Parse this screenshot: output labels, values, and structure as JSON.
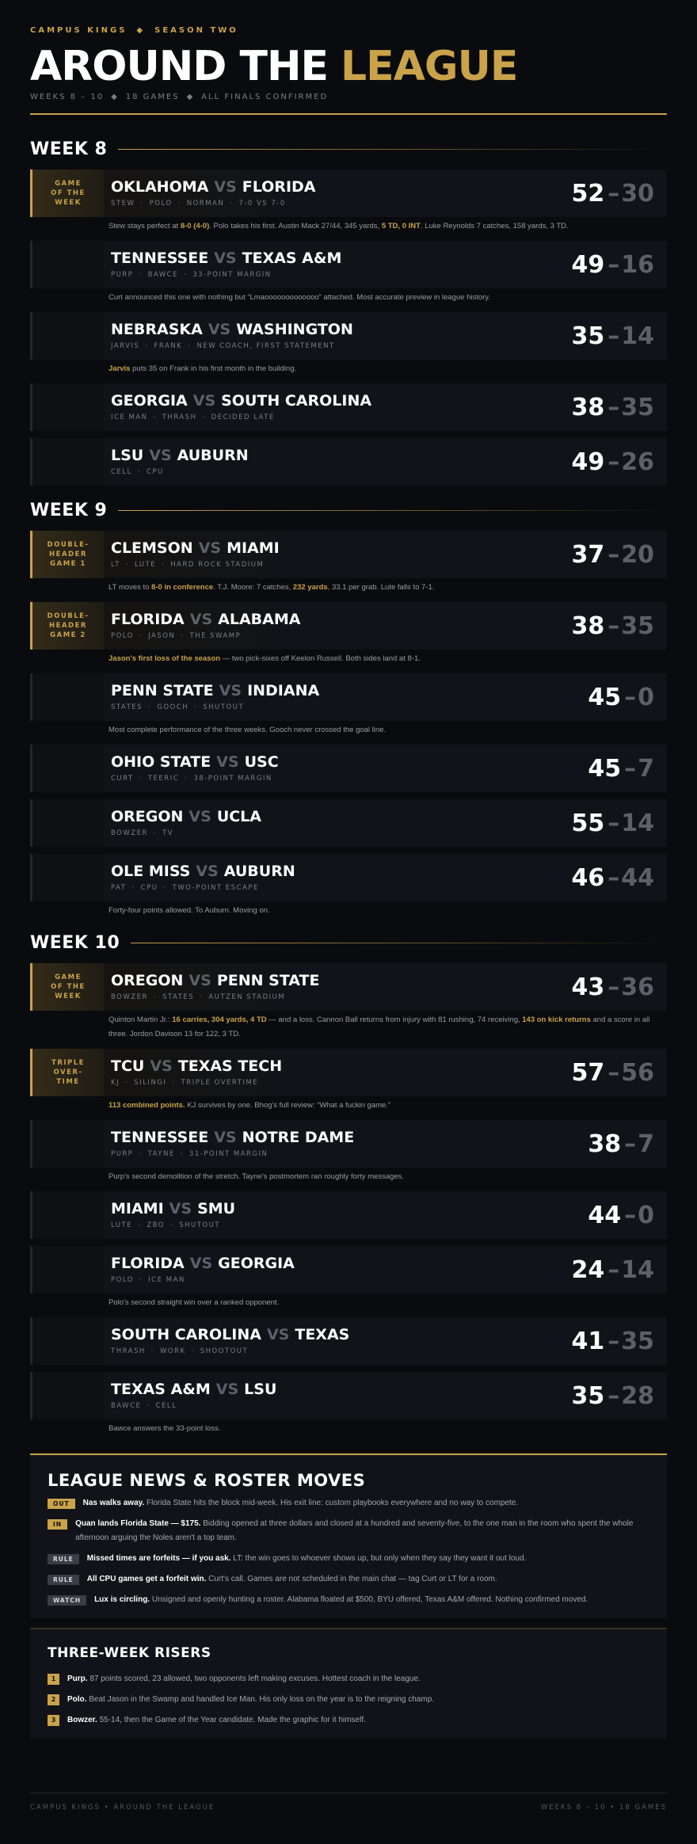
{
  "separators": {
    "diamond": "◆",
    "dot": "·",
    "vs": "VS",
    "dash": "–"
  },
  "header": {
    "kicker": [
      "CAMPUS KINGS",
      "SEASON TWO"
    ],
    "title_main": "AROUND THE",
    "title_accent": "LEAGUE",
    "meta": [
      "WEEKS 8 – 10",
      "18 GAMES",
      "ALL FINALS CONFIRMED"
    ]
  },
  "weeks": [
    {
      "label": "WEEK 8",
      "games": [
        {
          "tag": [
            "GAME",
            "OF THE",
            "WEEK"
          ],
          "home": "OKLAHOMA",
          "away": "FLORIDA",
          "meta": [
            "STEW",
            "POLO",
            "NORMAN",
            "7-0 VS 7-0"
          ],
          "score": [
            52,
            30
          ],
          "note": [
            {
              "text": "Stew stays perfect at "
            },
            {
              "text": "8-0 (4-0)",
              "b": true
            },
            {
              "text": ". Polo takes his first. Austin Mack 27/44, 345 yards, "
            },
            {
              "text": "5 TD, 0 INT",
              "b": true
            },
            {
              "text": ". Luke Reynolds 7 catches, 158 yards, 3 TD."
            }
          ]
        },
        {
          "home": "TENNESSEE",
          "away": "TEXAS A&M",
          "meta": [
            "PURP",
            "BAWCE",
            "33-POINT MARGIN"
          ],
          "score": [
            49,
            16
          ],
          "note": [
            {
              "text": "Curt announced this one with nothing but “Lmaooooooooooooo” attached. Most accurate preview in league history."
            }
          ]
        },
        {
          "home": "NEBRASKA",
          "away": "WASHINGTON",
          "meta": [
            "JARVIS",
            "FRANK",
            "NEW COACH, FIRST STATEMENT"
          ],
          "score": [
            35,
            14
          ],
          "note": [
            {
              "text": "Jarvis",
              "b": true
            },
            {
              "text": " puts 35 on Frank in his first month in the building."
            }
          ]
        },
        {
          "home": "GEORGIA",
          "away": "SOUTH CAROLINA",
          "meta": [
            "ICE MAN",
            "THRASH",
            "DECIDED LATE"
          ],
          "score": [
            38,
            35
          ]
        },
        {
          "home": "LSU",
          "away": "AUBURN",
          "meta": [
            "CELL",
            "CPU"
          ],
          "score": [
            49,
            26
          ]
        }
      ]
    },
    {
      "label": "WEEK 9",
      "games": [
        {
          "tag": [
            "DOUBLE-",
            "HEADER",
            "GAME 1"
          ],
          "home": "CLEMSON",
          "away": "MIAMI",
          "meta": [
            "LT",
            "LUTE",
            "HARD ROCK STADIUM"
          ],
          "score": [
            37,
            20
          ],
          "note": [
            {
              "text": "LT moves to "
            },
            {
              "text": "8-0 in conference",
              "b": true
            },
            {
              "text": ". T.J. Moore: 7 catches, "
            },
            {
              "text": "232 yards",
              "b": true
            },
            {
              "text": ", 33.1 per grab. Lute falls to 7-1."
            }
          ]
        },
        {
          "tag": [
            "DOUBLE-",
            "HEADER",
            "GAME 2"
          ],
          "home": "FLORIDA",
          "away": "ALABAMA",
          "meta": [
            "POLO",
            "JASON",
            "THE SWAMP"
          ],
          "score": [
            38,
            35
          ],
          "note": [
            {
              "text": "Jason's first loss of the season",
              "b": true
            },
            {
              "text": " — two pick-sixes off Keelon Russell. Both sides land at 8-1."
            }
          ]
        },
        {
          "home": "PENN STATE",
          "away": "INDIANA",
          "meta": [
            "STATES",
            "GOOCH",
            "SHUTOUT"
          ],
          "score": [
            45,
            0
          ],
          "note": [
            {
              "text": "Most complete performance of the three weeks. Gooch never crossed the goal line."
            }
          ]
        },
        {
          "home": "OHIO STATE",
          "away": "USC",
          "meta": [
            "CURT",
            "TEERIC",
            "38-POINT MARGIN"
          ],
          "score": [
            45,
            7
          ]
        },
        {
          "home": "OREGON",
          "away": "UCLA",
          "meta": [
            "BOWZER",
            "TV"
          ],
          "score": [
            55,
            14
          ]
        },
        {
          "home": "OLE MISS",
          "away": "AUBURN",
          "meta": [
            "PAT",
            "CPU",
            "TWO-POINT ESCAPE"
          ],
          "score": [
            46,
            44
          ],
          "note": [
            {
              "text": "Forty-four points allowed. To Auburn. Moving on."
            }
          ]
        }
      ]
    },
    {
      "label": "WEEK 10",
      "games": [
        {
          "tag": [
            "GAME",
            "OF THE",
            "WEEK"
          ],
          "home": "OREGON",
          "away": "PENN STATE",
          "meta": [
            "BOWZER",
            "STATES",
            "AUTZEN STADIUM"
          ],
          "score": [
            43,
            36
          ],
          "note": [
            {
              "text": "Quinton Martin Jr.: "
            },
            {
              "text": "16 carries, 304 yards, 4 TD",
              "b": true
            },
            {
              "text": " — and a loss. Cannon Ball returns from injury with 81 rushing, 74 receiving, "
            },
            {
              "text": "143 on kick returns",
              "b": true
            },
            {
              "text": " and a score in all three. Jordon Davison 13 for 122, 3 TD."
            }
          ]
        },
        {
          "tag": [
            "TRIPLE",
            "OVER-",
            "TIME"
          ],
          "home": "TCU",
          "away": "TEXAS TECH",
          "meta": [
            "KJ",
            "SILINGI",
            "TRIPLE OVERTIME"
          ],
          "score": [
            57,
            56
          ],
          "note": [
            {
              "text": "113 combined points.",
              "b": true
            },
            {
              "text": " KJ survives by one. Bhog's full review: “What a fuckin game.”"
            }
          ]
        },
        {
          "home": "TENNESSEE",
          "away": "NOTRE DAME",
          "meta": [
            "PURP",
            "TAYNE",
            "31-POINT MARGIN"
          ],
          "score": [
            38,
            7
          ],
          "note": [
            {
              "text": "Purp's second demolition of the stretch. Tayne's postmortem ran roughly forty messages."
            }
          ]
        },
        {
          "home": "MIAMI",
          "away": "SMU",
          "meta": [
            "LUTE",
            "ZBO",
            "SHUTOUT"
          ],
          "score": [
            44,
            0
          ]
        },
        {
          "home": "FLORIDA",
          "away": "GEORGIA",
          "meta": [
            "POLO",
            "ICE MAN"
          ],
          "score": [
            24,
            14
          ],
          "note": [
            {
              "text": "Polo's second straight win over a ranked opponent."
            }
          ]
        },
        {
          "home": "SOUTH CAROLINA",
          "away": "TEXAS",
          "meta": [
            "THRASH",
            "WORK",
            "SHOOTOUT"
          ],
          "score": [
            41,
            35
          ]
        },
        {
          "home": "TEXAS A&M",
          "away": "LSU",
          "meta": [
            "BAWCE",
            "CELL"
          ],
          "score": [
            35,
            28
          ],
          "note": [
            {
              "text": "Bawce answers the 33-point loss."
            }
          ]
        }
      ]
    }
  ],
  "news": {
    "title": "LEAGUE NEWS & ROSTER MOVES",
    "items": [
      {
        "tag": "OUT",
        "tag_bg": "#c9a24a",
        "tag_fg": "#111111",
        "lead": "Nas walks away.",
        "text": " Florida State hits the block mid-week. His exit line: custom playbooks everywhere and no way to compete."
      },
      {
        "tag": "IN",
        "tag_bg": "#c9a24a",
        "tag_fg": "#111111",
        "lead": "Quan lands Florida State — $175.",
        "text": " Bidding opened at three dollars and closed at a hundred and seventy-five, to the one man in the room who spent the whole afternoon arguing the Noles aren't a top team."
      },
      {
        "tag": "RULE",
        "tag_bg": "#3a3d45",
        "tag_fg": "#d6d7db",
        "lead": "Missed times are forfeits — if you ask.",
        "text": " LT: the win goes to whoever shows up, but only when they say they want it out loud."
      },
      {
        "tag": "RULE",
        "tag_bg": "#3a3d45",
        "tag_fg": "#d6d7db",
        "lead": "All CPU games get a forfeit win.",
        "text": " Curt's call. Games are not scheduled in the main chat — tag Curt or LT for a room."
      },
      {
        "tag": "WATCH",
        "tag_bg": "#3a3d45",
        "tag_fg": "#d6d7db",
        "lead": "Lux is circling.",
        "text": " Unsigned and openly hunting a roster. Alabama floated at $500, BYU offered, Texas A&M offered. Nothing confirmed moved."
      }
    ]
  },
  "risers": {
    "title": "THREE-WEEK RISERS",
    "items": [
      {
        "rank": 1,
        "name": "Purp.",
        "text": " 87 points scored, 23 allowed, two opponents left making excuses. Hottest coach in the league."
      },
      {
        "rank": 2,
        "name": "Polo.",
        "text": " Beat Jason in the Swamp and handled Ice Man. His only loss on the year is to the reigning champ."
      },
      {
        "rank": 3,
        "name": "Bowzer.",
        "text": " 55-14, then the Game of the Year candidate. Made the graphic for it himself."
      }
    ]
  },
  "footer": {
    "left": "CAMPUS KINGS • AROUND THE LEAGUE",
    "right": "WEEKS 8 – 10 • 18 GAMES"
  }
}
